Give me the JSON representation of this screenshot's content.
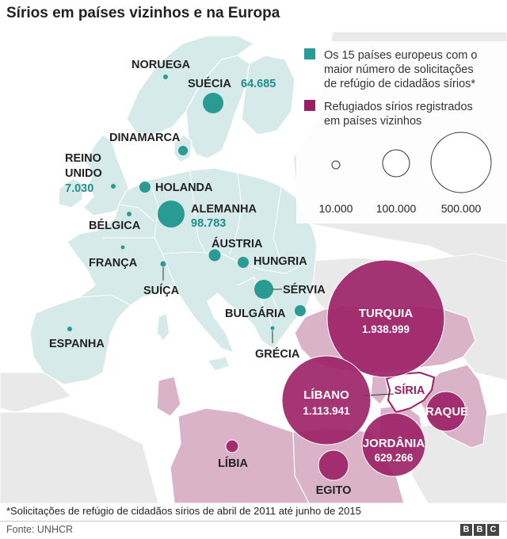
{
  "title": "Sírios em países vizinhos e na Europa",
  "colors": {
    "europe_fill": "#d6ebe9",
    "europe_circle": "#2a9b94",
    "neighbor_fill": "#dbb3c9",
    "neighbor_circle": "#9b1f66",
    "syria_fill": "#ffffff",
    "land_gray": "#e9e9e9",
    "sea": "#ffffff"
  },
  "legend": {
    "europe_label": "Os 15 países europeus com o maior número de solicitações de refúgio de cidadãos sírios*",
    "europe_lines": [
      "Os 15 países europeus com o",
      "maior número de solicitações",
      "de refúgio de cidadãos sírios*"
    ],
    "neighbor_label": "Refugiados sírios registrados em países vizinhos",
    "neighbor_lines": [
      "Refugiados sírios registrados",
      "em países vizinhos"
    ],
    "scale": [
      {
        "value": 10000,
        "label": "10.000"
      },
      {
        "value": 100000,
        "label": "100.000"
      },
      {
        "value": 500000,
        "label": "500.000"
      }
    ]
  },
  "europe": [
    {
      "name": "NORUEGA",
      "value": null
    },
    {
      "name": "SUÉCIA",
      "value_label": "64.685",
      "value": 64685
    },
    {
      "name": "DINAMARCA",
      "value": null
    },
    {
      "name": "REINO UNIDO",
      "lines": [
        "REINO",
        "UNIDO"
      ],
      "value_label": "7.030",
      "value": 7030
    },
    {
      "name": "HOLANDA",
      "value": null
    },
    {
      "name": "ALEMANHA",
      "value_label": "98.783",
      "value": 98783
    },
    {
      "name": "BÉLGICA",
      "value": null
    },
    {
      "name": "ÁUSTRIA",
      "value": null
    },
    {
      "name": "HUNGRIA",
      "value": null
    },
    {
      "name": "FRANÇA",
      "value": null
    },
    {
      "name": "SUÍÇA",
      "value": null
    },
    {
      "name": "SÉRVIA",
      "value": null
    },
    {
      "name": "BULGÁRIA",
      "value": null
    },
    {
      "name": "ESPANHA",
      "value": null
    },
    {
      "name": "GRÉCIA",
      "value": null
    }
  ],
  "neighbors": [
    {
      "name": "TURQUIA",
      "value_label": "1.938.999",
      "value": 1938999
    },
    {
      "name": "LÍBANO",
      "value_label": "1.113.941",
      "value": 1113941
    },
    {
      "name": "JORDÂNIA",
      "value_label": "629.266",
      "value": 629266
    },
    {
      "name": "IRAQUE",
      "value": null
    },
    {
      "name": "EGITO",
      "value": null
    },
    {
      "name": "LÍBIA",
      "value": null
    }
  ],
  "syria_label": "SÍRIA",
  "footnote": "*Solicitações de refúgio de cidadãos sírios de abril de 2011 até junho de 2015",
  "source": "Fonte: UNHCR",
  "logo": [
    "B",
    "B",
    "C"
  ]
}
